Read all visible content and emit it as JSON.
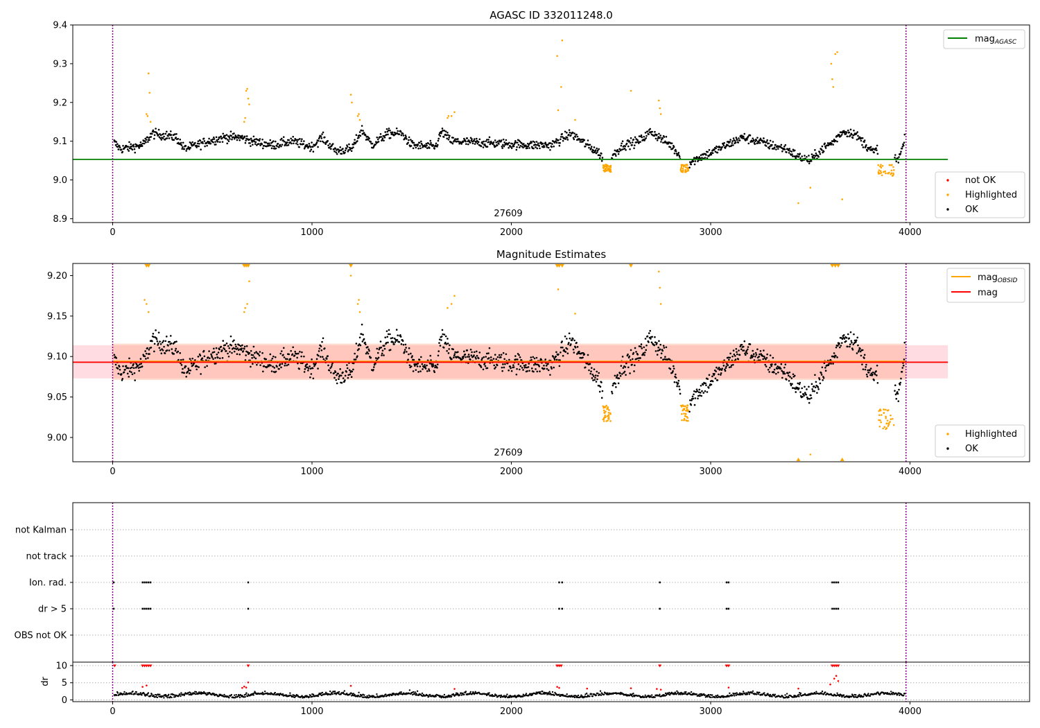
{
  "figure": {
    "top_title": "AGASC ID 332011248.0",
    "mid_title": "Magnitude Estimates",
    "obsid_label": "27609"
  },
  "legends": {
    "top_line": "mag",
    "top_line_sub": "AGASC",
    "top_points": [
      "not OK",
      "Highlighted",
      "OK"
    ],
    "mid_line_obsid": "mag",
    "mid_line_obsid_sub": "OBSID",
    "mid_line_mag": "mag",
    "mid_points": [
      "Highlighted",
      "OK"
    ]
  },
  "colors": {
    "ok": "#000000",
    "highlighted": "#ffa500",
    "not_ok": "#ff0000",
    "agasc_line": "#008000",
    "mag_line": "#ff0000",
    "obsid_line": "#ffa500",
    "band_pink": "#ffc0cb",
    "band_orange": "#ffa07a",
    "vline": "#800080"
  },
  "chart_data": [
    {
      "id": "top",
      "type": "scatter",
      "title": "AGASC ID 332011248.0",
      "xlim": [
        -200,
        4600
      ],
      "ylim": [
        8.89,
        9.4
      ],
      "xticks": [
        0,
        1000,
        2000,
        3000,
        4000
      ],
      "yticks": [
        8.9,
        9.0,
        9.1,
        9.2,
        9.3,
        9.4
      ],
      "ytick_labels": [
        "8.9",
        "9.0",
        "9.1",
        "9.2",
        "9.3",
        "9.4"
      ],
      "hline": {
        "name": "mag_AGASC",
        "y": 9.053,
        "x": [
          -200,
          4190
        ]
      },
      "vlines": [
        0,
        3980
      ],
      "annotation": {
        "text": "27609",
        "x": 1990
      },
      "legend": "top-right and bottom-right",
      "highlighted_points": [
        [
          170,
          9.17
        ],
        [
          175,
          9.165
        ],
        [
          180,
          9.275
        ],
        [
          185,
          9.225
        ],
        [
          190,
          9.15
        ],
        [
          660,
          9.15
        ],
        [
          665,
          9.16
        ],
        [
          670,
          9.23
        ],
        [
          675,
          9.235
        ],
        [
          680,
          9.21
        ],
        [
          685,
          9.195
        ],
        [
          1195,
          9.22
        ],
        [
          1200,
          9.2
        ],
        [
          1230,
          9.165
        ],
        [
          1235,
          9.17
        ],
        [
          1240,
          9.155
        ],
        [
          1680,
          9.16
        ],
        [
          1685,
          9.165
        ],
        [
          1700,
          9.165
        ],
        [
          1715,
          9.175
        ],
        [
          2230,
          9.32
        ],
        [
          2235,
          9.18
        ],
        [
          2250,
          9.24
        ],
        [
          2255,
          9.36
        ],
        [
          2320,
          9.155
        ],
        [
          2600,
          9.23
        ],
        [
          2740,
          9.205
        ],
        [
          2745,
          9.185
        ],
        [
          2750,
          9.17
        ],
        [
          3440,
          8.94
        ],
        [
          3500,
          8.98
        ],
        [
          3605,
          9.3
        ],
        [
          3610,
          9.26
        ],
        [
          3615,
          9.24
        ],
        [
          3625,
          9.325
        ],
        [
          3635,
          9.33
        ],
        [
          3660,
          8.95
        ]
      ],
      "highlighted_clusters": [
        {
          "x": [
            2460,
            2500
          ],
          "y": [
            9.02,
            9.04
          ]
        },
        {
          "x": [
            2850,
            2890
          ],
          "y": [
            9.02,
            9.04
          ]
        },
        {
          "x": [
            3840,
            3920
          ],
          "y": [
            9.01,
            9.04
          ]
        }
      ]
    },
    {
      "id": "middle",
      "type": "scatter",
      "title": "Magnitude Estimates",
      "xlim": [
        -200,
        4600
      ],
      "ylim": [
        8.97,
        9.215
      ],
      "xticks": [
        0,
        1000,
        2000,
        3000,
        4000
      ],
      "yticks": [
        9.0,
        9.05,
        9.1,
        9.15,
        9.2
      ],
      "ytick_labels": [
        "9.00",
        "9.05",
        "9.10",
        "9.15",
        "9.20"
      ],
      "mag": 9.093,
      "mag_obsid": 9.094,
      "band_pink": [
        9.073,
        9.114
      ],
      "band_orange": [
        9.071,
        9.116
      ],
      "vlines": [
        0,
        3980
      ],
      "annotation": {
        "text": "27609",
        "x": 1990
      },
      "legend": "top-right and bottom-right",
      "clipped_high_x": [
        170,
        180,
        660,
        670,
        680,
        1195,
        2230,
        2240,
        2255,
        2600,
        3610,
        3625,
        3640
      ],
      "clipped_low_x": [
        3440,
        3660
      ],
      "highlighted_points": [
        [
          160,
          9.17
        ],
        [
          170,
          9.165
        ],
        [
          180,
          9.155
        ],
        [
          660,
          9.155
        ],
        [
          665,
          9.16
        ],
        [
          675,
          9.165
        ],
        [
          685,
          9.193
        ],
        [
          1195,
          9.2
        ],
        [
          1230,
          9.165
        ],
        [
          1235,
          9.17
        ],
        [
          1240,
          9.155
        ],
        [
          1680,
          9.16
        ],
        [
          1700,
          9.165
        ],
        [
          1715,
          9.175
        ],
        [
          2235,
          9.183
        ],
        [
          2320,
          9.153
        ],
        [
          2740,
          9.205
        ],
        [
          2745,
          9.185
        ],
        [
          2750,
          9.165
        ],
        [
          3500,
          8.979
        ]
      ],
      "highlighted_clusters": [
        {
          "x": [
            2460,
            2500
          ],
          "y": [
            9.02,
            9.04
          ]
        },
        {
          "x": [
            2850,
            2890
          ],
          "y": [
            9.02,
            9.04
          ]
        },
        {
          "x": [
            3840,
            3920
          ],
          "y": [
            9.01,
            9.035
          ]
        }
      ]
    },
    {
      "id": "flags",
      "type": "scatter",
      "xlim": [
        -200,
        4600
      ],
      "categories": [
        "not Kalman",
        "not track",
        "Ion. rad.",
        "dr > 5",
        "OBS not OK"
      ],
      "flag_x": {
        "Ion. rad.": [
          5,
          150,
          160,
          170,
          180,
          190,
          680,
          2240,
          2255,
          2745,
          3080,
          3090,
          3610,
          3620,
          3630,
          3640
        ],
        "dr > 5": [
          5,
          150,
          160,
          170,
          180,
          190,
          680,
          2240,
          2255,
          2745,
          3080,
          3090,
          3610,
          3620,
          3630,
          3640
        ]
      },
      "vlines": [
        0,
        3980
      ]
    },
    {
      "id": "dr",
      "type": "scatter",
      "ylabel": "dr",
      "xlim": [
        -200,
        4600
      ],
      "ylim": [
        -0.5,
        11
      ],
      "xticks": [
        0,
        1000,
        2000,
        3000,
        4000
      ],
      "yticks": [
        0,
        5,
        10
      ],
      "clipped_at_10_x": [
        10,
        150,
        160,
        170,
        180,
        190,
        680,
        2230,
        2240,
        2250,
        2745,
        3080,
        3090,
        3610,
        3620,
        3630,
        3640
      ],
      "red_points": [
        [
          150,
          3.8
        ],
        [
          170,
          4.2
        ],
        [
          650,
          3.5
        ],
        [
          660,
          3.9
        ],
        [
          670,
          3.6
        ],
        [
          680,
          5.1
        ],
        [
          1195,
          4.1
        ],
        [
          1715,
          3.2
        ],
        [
          2230,
          3.8
        ],
        [
          2240,
          3.5
        ],
        [
          2380,
          3.3
        ],
        [
          2600,
          3.4
        ],
        [
          2730,
          3.2
        ],
        [
          2750,
          3.0
        ],
        [
          3090,
          3.6
        ],
        [
          3440,
          3.3
        ],
        [
          3600,
          4.5
        ],
        [
          3620,
          6.2
        ],
        [
          3630,
          7.0
        ],
        [
          3640,
          5.5
        ]
      ],
      "vlines": [
        0,
        3980
      ]
    }
  ]
}
